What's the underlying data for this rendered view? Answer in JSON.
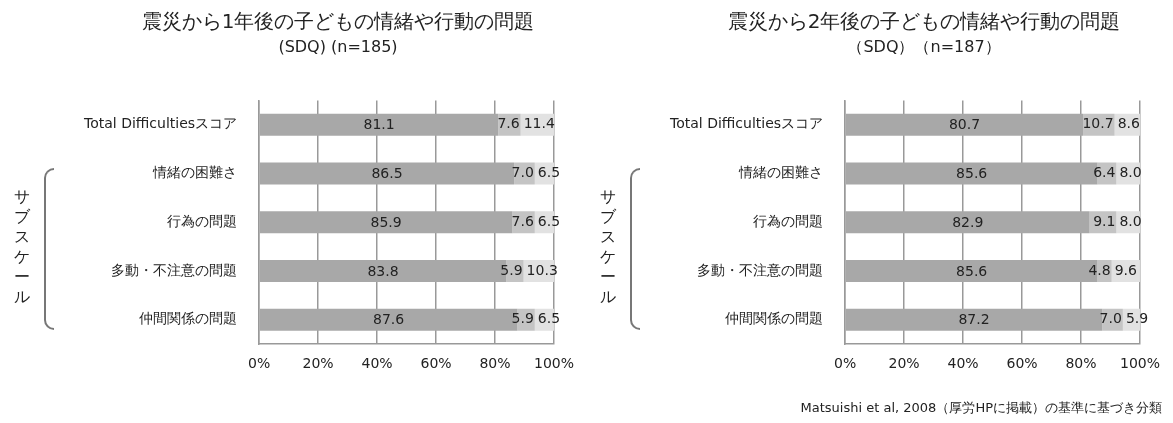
{
  "chart_data": [
    {
      "type": "bar",
      "orientation": "horizontal",
      "stacked": true,
      "title": "震災から1年後の子どもの情緒や行動の問題",
      "subtitle": "(SDQ)  (n=185)",
      "categories": [
        "Total Difficultiesスコア",
        "情緒の困難さ",
        "行為の問題",
        "多動・不注意の問題",
        "仲間関係の問題"
      ],
      "series": [
        {
          "color": "#a8a8a8",
          "values": [
            81.1,
            86.5,
            85.9,
            83.8,
            87.6
          ]
        },
        {
          "color": "#c4c4c4",
          "values": [
            7.6,
            7.0,
            7.6,
            5.9,
            5.9
          ]
        },
        {
          "color": "#e2e2e2",
          "values": [
            11.4,
            6.5,
            6.5,
            10.3,
            6.5
          ]
        }
      ],
      "xlim": [
        0,
        100
      ],
      "xticks": [
        {
          "value": 0,
          "label": "0%"
        },
        {
          "value": 20,
          "label": "20%"
        },
        {
          "value": 40,
          "label": "40%"
        },
        {
          "value": 60,
          "label": "60%"
        },
        {
          "value": 80,
          "label": "80%"
        },
        {
          "value": 100,
          "label": "100%"
        }
      ],
      "grid": "x",
      "legend": false,
      "value_labels": [
        [
          "81.1",
          "86.5",
          "85.9",
          "83.8",
          "87.6"
        ],
        [
          "7.6",
          "7.0",
          "7.6",
          "5.9",
          "5.9"
        ],
        [
          "11.4",
          "6.5",
          "6.5",
          "10.3",
          "6.5"
        ]
      ],
      "annotations": [
        "サブスケール"
      ]
    },
    {
      "type": "bar",
      "orientation": "horizontal",
      "stacked": true,
      "title": "震災から2年後の子どもの情緒や行動の問題",
      "subtitle": "（SDQ）（n=187）",
      "categories": [
        "Total Difficultiesスコア",
        "情緒の困難さ",
        "行為の問題",
        "多動・不注意の問題",
        "仲間関係の問題"
      ],
      "series": [
        {
          "color": "#a8a8a8",
          "values": [
            80.7,
            85.6,
            82.9,
            85.6,
            87.2
          ]
        },
        {
          "color": "#c4c4c4",
          "values": [
            10.7,
            6.4,
            9.1,
            4.8,
            7.0
          ]
        },
        {
          "color": "#e2e2e2",
          "values": [
            8.6,
            8.0,
            8.0,
            9.6,
            5.9
          ]
        }
      ],
      "xlim": [
        0,
        100
      ],
      "xticks": [
        {
          "value": 0,
          "label": "0%"
        },
        {
          "value": 20,
          "label": "20%"
        },
        {
          "value": 40,
          "label": "40%"
        },
        {
          "value": 60,
          "label": "60%"
        },
        {
          "value": 80,
          "label": "80%"
        },
        {
          "value": 100,
          "label": "100%"
        }
      ],
      "grid": "x",
      "legend": false,
      "value_labels": [
        [
          "80.7",
          "85.6",
          "82.9",
          "85.6",
          "87.2"
        ],
        [
          "10.7",
          "6.4",
          "9.1",
          "4.8",
          "7.0"
        ],
        [
          "8.6",
          "8.0",
          "8.0",
          "9.6",
          "5.9"
        ]
      ],
      "annotations": [
        "サブスケール",
        "Matsuishi et al, 2008（厚労HPに掲載）の基準に基づき分類"
      ]
    }
  ]
}
